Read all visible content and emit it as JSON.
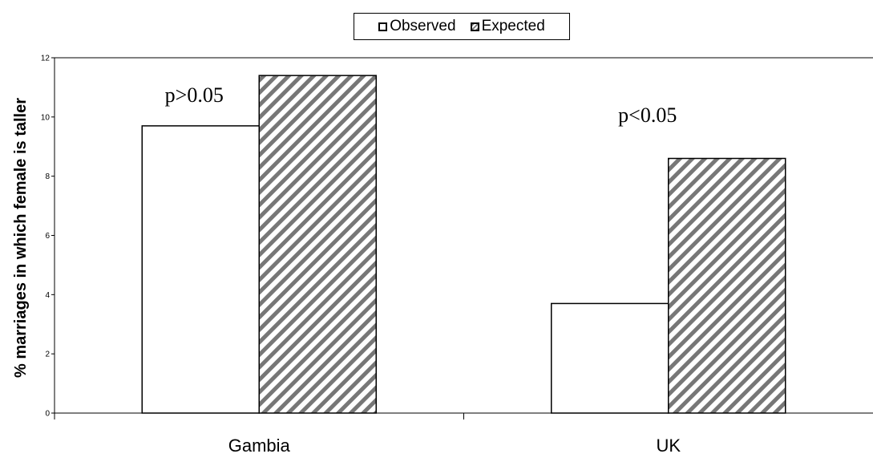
{
  "chart_data": {
    "type": "bar",
    "categories": [
      "Gambia",
      "UK"
    ],
    "series": [
      {
        "name": "Observed",
        "values": [
          9.7,
          3.7
        ]
      },
      {
        "name": "Expected",
        "values": [
          11.4,
          8.6
        ]
      }
    ],
    "ylabel": "% marriages in which female is taller",
    "xlabel": "",
    "ylim": [
      0,
      12
    ],
    "yticks": [
      0,
      2,
      4,
      6,
      8,
      10,
      12
    ],
    "legend_position": "top-center",
    "grid": "dashed horizontal gridlines visible only inside hatched bars",
    "annotations": [
      {
        "category": "Gambia",
        "text": "p>0.05"
      },
      {
        "category": "UK",
        "text": "p<0.05"
      }
    ],
    "colors": {
      "observed_fill": "#ffffff",
      "hatch": "#777777",
      "axis": "#000000"
    }
  }
}
